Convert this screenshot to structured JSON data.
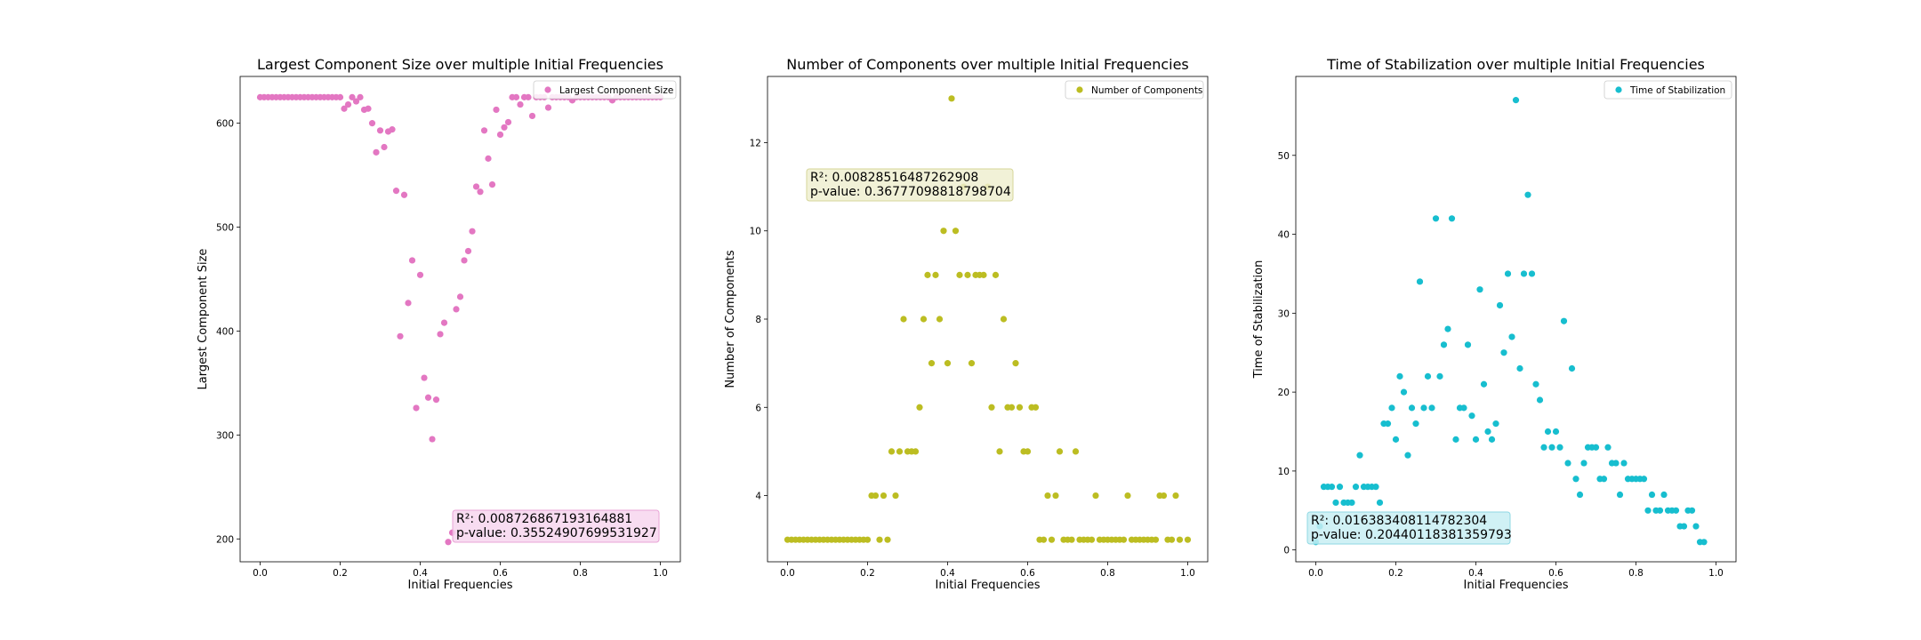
{
  "chart_data": [
    {
      "type": "scatter",
      "title": "Largest Component Size over multiple Initial Frequencies",
      "xlabel": "Initial Frequencies",
      "ylabel": "Largest Component Size",
      "xlim": [
        -0.05,
        1.05
      ],
      "ylim": [
        178,
        645
      ],
      "xticks": [
        0.0,
        0.2,
        0.4,
        0.6,
        0.8,
        1.0
      ],
      "xtick_labels": [
        "0.0",
        "0.2",
        "0.4",
        "0.6",
        "0.8",
        "1.0"
      ],
      "yticks": [
        200,
        300,
        400,
        500,
        600
      ],
      "ytick_labels": [
        "200",
        "300",
        "400",
        "500",
        "600"
      ],
      "legend": {
        "label": "Largest Component Size",
        "position": "top-right"
      },
      "color": "#e377c2",
      "annotation": {
        "line1": "R²: 0.008726867193164881",
        "line2": "p-value: 0.35524907699531927",
        "position": "bottom-right",
        "box_fill": "#f7d6ee",
        "box_stroke": "#e9a3d6"
      },
      "grid": false,
      "points": [
        [
          0.0,
          625
        ],
        [
          0.01,
          625
        ],
        [
          0.02,
          625
        ],
        [
          0.03,
          625
        ],
        [
          0.04,
          625
        ],
        [
          0.05,
          625
        ],
        [
          0.06,
          625
        ],
        [
          0.07,
          625
        ],
        [
          0.08,
          625
        ],
        [
          0.09,
          625
        ],
        [
          0.1,
          625
        ],
        [
          0.11,
          625
        ],
        [
          0.12,
          625
        ],
        [
          0.13,
          625
        ],
        [
          0.14,
          625
        ],
        [
          0.15,
          625
        ],
        [
          0.16,
          625
        ],
        [
          0.17,
          625
        ],
        [
          0.18,
          625
        ],
        [
          0.19,
          625
        ],
        [
          0.2,
          625
        ],
        [
          0.21,
          614
        ],
        [
          0.22,
          618
        ],
        [
          0.23,
          625
        ],
        [
          0.24,
          621
        ],
        [
          0.25,
          625
        ],
        [
          0.26,
          613
        ],
        [
          0.27,
          614
        ],
        [
          0.28,
          600
        ],
        [
          0.29,
          572
        ],
        [
          0.3,
          593
        ],
        [
          0.31,
          577
        ],
        [
          0.32,
          592
        ],
        [
          0.33,
          594
        ],
        [
          0.34,
          535
        ],
        [
          0.35,
          395
        ],
        [
          0.36,
          531
        ],
        [
          0.37,
          427
        ],
        [
          0.38,
          468
        ],
        [
          0.39,
          326
        ],
        [
          0.4,
          454
        ],
        [
          0.41,
          355
        ],
        [
          0.42,
          336
        ],
        [
          0.43,
          296
        ],
        [
          0.44,
          334
        ],
        [
          0.45,
          397
        ],
        [
          0.46,
          408
        ],
        [
          0.47,
          197
        ],
        [
          0.48,
          206
        ],
        [
          0.49,
          421
        ],
        [
          0.5,
          433
        ],
        [
          0.51,
          468
        ],
        [
          0.52,
          477
        ],
        [
          0.53,
          496
        ],
        [
          0.54,
          539
        ],
        [
          0.55,
          534
        ],
        [
          0.56,
          593
        ],
        [
          0.57,
          566
        ],
        [
          0.58,
          541
        ],
        [
          0.59,
          613
        ],
        [
          0.6,
          589
        ],
        [
          0.61,
          596
        ],
        [
          0.62,
          601
        ],
        [
          0.63,
          625
        ],
        [
          0.64,
          625
        ],
        [
          0.65,
          618
        ],
        [
          0.66,
          625
        ],
        [
          0.67,
          625
        ],
        [
          0.68,
          607
        ],
        [
          0.69,
          625
        ],
        [
          0.7,
          625
        ],
        [
          0.71,
          625
        ],
        [
          0.72,
          615
        ],
        [
          0.73,
          625
        ],
        [
          0.74,
          625
        ],
        [
          0.75,
          625
        ],
        [
          0.76,
          625
        ],
        [
          0.77,
          625
        ],
        [
          0.78,
          622
        ],
        [
          0.79,
          625
        ],
        [
          0.8,
          625
        ],
        [
          0.81,
          625
        ],
        [
          0.82,
          625
        ],
        [
          0.83,
          625
        ],
        [
          0.84,
          625
        ],
        [
          0.85,
          625
        ],
        [
          0.86,
          625
        ],
        [
          0.87,
          625
        ],
        [
          0.88,
          622
        ],
        [
          0.89,
          625
        ],
        [
          0.9,
          625
        ],
        [
          0.91,
          625
        ],
        [
          0.92,
          625
        ],
        [
          0.93,
          625
        ],
        [
          0.94,
          625
        ],
        [
          0.95,
          625
        ],
        [
          0.96,
          625
        ],
        [
          0.97,
          625
        ],
        [
          0.98,
          625
        ],
        [
          0.99,
          625
        ],
        [
          1.0,
          625
        ]
      ]
    },
    {
      "type": "scatter",
      "title": "Number of Components over multiple Initial Frequencies",
      "xlabel": "Initial Frequencies",
      "ylabel": "Number of Components",
      "xlim": [
        -0.05,
        1.05
      ],
      "ylim": [
        2.5,
        13.5
      ],
      "xticks": [
        0.0,
        0.2,
        0.4,
        0.6,
        0.8,
        1.0
      ],
      "xtick_labels": [
        "0.0",
        "0.2",
        "0.4",
        "0.6",
        "0.8",
        "1.0"
      ],
      "yticks": [
        4,
        6,
        8,
        10,
        12
      ],
      "ytick_labels": [
        "4",
        "6",
        "8",
        "10",
        "12"
      ],
      "legend": {
        "label": "Number of Components",
        "position": "top-right"
      },
      "color": "#bcbd22",
      "annotation": {
        "line1": "R²: 0.00828516487262908",
        "line2": "p-value: 0.36777098818798704",
        "position": "top-left",
        "box_fill": "#eeeed0",
        "box_stroke": "#d6d69a"
      },
      "grid": false,
      "points": [
        [
          0.0,
          3
        ],
        [
          0.01,
          3
        ],
        [
          0.02,
          3
        ],
        [
          0.03,
          3
        ],
        [
          0.04,
          3
        ],
        [
          0.05,
          3
        ],
        [
          0.06,
          3
        ],
        [
          0.07,
          3
        ],
        [
          0.08,
          3
        ],
        [
          0.09,
          3
        ],
        [
          0.1,
          3
        ],
        [
          0.11,
          3
        ],
        [
          0.12,
          3
        ],
        [
          0.13,
          3
        ],
        [
          0.14,
          3
        ],
        [
          0.15,
          3
        ],
        [
          0.16,
          3
        ],
        [
          0.17,
          3
        ],
        [
          0.18,
          3
        ],
        [
          0.19,
          3
        ],
        [
          0.2,
          3
        ],
        [
          0.21,
          4
        ],
        [
          0.22,
          4
        ],
        [
          0.23,
          3
        ],
        [
          0.24,
          4
        ],
        [
          0.25,
          3
        ],
        [
          0.26,
          5
        ],
        [
          0.27,
          4
        ],
        [
          0.28,
          5
        ],
        [
          0.29,
          8
        ],
        [
          0.3,
          5
        ],
        [
          0.31,
          5
        ],
        [
          0.32,
          5
        ],
        [
          0.33,
          6
        ],
        [
          0.34,
          8
        ],
        [
          0.35,
          9
        ],
        [
          0.36,
          7
        ],
        [
          0.37,
          9
        ],
        [
          0.38,
          8
        ],
        [
          0.39,
          10
        ],
        [
          0.4,
          7
        ],
        [
          0.41,
          13
        ],
        [
          0.42,
          10
        ],
        [
          0.43,
          9
        ],
        [
          0.44,
          11
        ],
        [
          0.45,
          9
        ],
        [
          0.46,
          7
        ],
        [
          0.47,
          9
        ],
        [
          0.48,
          9
        ],
        [
          0.49,
          9
        ],
        [
          0.5,
          11
        ],
        [
          0.51,
          6
        ],
        [
          0.52,
          9
        ],
        [
          0.53,
          5
        ],
        [
          0.54,
          8
        ],
        [
          0.55,
          6
        ],
        [
          0.56,
          6
        ],
        [
          0.57,
          7
        ],
        [
          0.58,
          6
        ],
        [
          0.59,
          5
        ],
        [
          0.6,
          5
        ],
        [
          0.61,
          6
        ],
        [
          0.62,
          6
        ],
        [
          0.63,
          3
        ],
        [
          0.64,
          3
        ],
        [
          0.65,
          4
        ],
        [
          0.66,
          3
        ],
        [
          0.67,
          4
        ],
        [
          0.68,
          5
        ],
        [
          0.69,
          3
        ],
        [
          0.7,
          3
        ],
        [
          0.71,
          3
        ],
        [
          0.72,
          5
        ],
        [
          0.73,
          3
        ],
        [
          0.74,
          3
        ],
        [
          0.75,
          3
        ],
        [
          0.76,
          3
        ],
        [
          0.77,
          4
        ],
        [
          0.78,
          3
        ],
        [
          0.79,
          3
        ],
        [
          0.8,
          3
        ],
        [
          0.81,
          3
        ],
        [
          0.82,
          3
        ],
        [
          0.83,
          3
        ],
        [
          0.84,
          3
        ],
        [
          0.85,
          4
        ],
        [
          0.86,
          3
        ],
        [
          0.87,
          3
        ],
        [
          0.88,
          3
        ],
        [
          0.89,
          3
        ],
        [
          0.9,
          3
        ],
        [
          0.91,
          3
        ],
        [
          0.92,
          3
        ],
        [
          0.93,
          4
        ],
        [
          0.94,
          4
        ],
        [
          0.95,
          3
        ],
        [
          0.96,
          3
        ],
        [
          0.97,
          4
        ],
        [
          0.98,
          3
        ],
        [
          1.0,
          3
        ]
      ]
    },
    {
      "type": "scatter",
      "title": "Time of Stabilization over multiple Initial Frequencies",
      "xlabel": "Initial Frequencies",
      "ylabel": "Time of Stabilization",
      "xlim": [
        -0.05,
        1.05
      ],
      "ylim": [
        -1.5,
        60
      ],
      "xticks": [
        0.0,
        0.2,
        0.4,
        0.6,
        0.8,
        1.0
      ],
      "xtick_labels": [
        "0.0",
        "0.2",
        "0.4",
        "0.6",
        "0.8",
        "1.0"
      ],
      "yticks": [
        0,
        10,
        20,
        30,
        40,
        50
      ],
      "ytick_labels": [
        "0",
        "10",
        "20",
        "30",
        "40",
        "50"
      ],
      "legend": {
        "label": "Time of Stabilization",
        "position": "top-right"
      },
      "color": "#17becf",
      "annotation": {
        "line1": "R²: 0.016383408114782304",
        "line2": "p-value: 0.20440118381359793",
        "position": "bottom-left",
        "box_fill": "#c8eef3",
        "box_stroke": "#8fd8e3"
      },
      "grid": false,
      "points": [
        [
          0.0,
          1
        ],
        [
          0.01,
          3
        ],
        [
          0.02,
          8
        ],
        [
          0.03,
          8
        ],
        [
          0.04,
          8
        ],
        [
          0.05,
          6
        ],
        [
          0.06,
          8
        ],
        [
          0.07,
          6
        ],
        [
          0.08,
          6
        ],
        [
          0.09,
          6
        ],
        [
          0.1,
          8
        ],
        [
          0.11,
          12
        ],
        [
          0.12,
          8
        ],
        [
          0.13,
          8
        ],
        [
          0.14,
          8
        ],
        [
          0.15,
          8
        ],
        [
          0.16,
          6
        ],
        [
          0.17,
          16
        ],
        [
          0.18,
          16
        ],
        [
          0.19,
          18
        ],
        [
          0.2,
          14
        ],
        [
          0.21,
          22
        ],
        [
          0.22,
          20
        ],
        [
          0.23,
          12
        ],
        [
          0.24,
          18
        ],
        [
          0.25,
          16
        ],
        [
          0.26,
          34
        ],
        [
          0.27,
          18
        ],
        [
          0.28,
          22
        ],
        [
          0.29,
          18
        ],
        [
          0.3,
          42
        ],
        [
          0.31,
          22
        ],
        [
          0.32,
          26
        ],
        [
          0.33,
          28
        ],
        [
          0.34,
          42
        ],
        [
          0.35,
          14
        ],
        [
          0.36,
          18
        ],
        [
          0.37,
          18
        ],
        [
          0.38,
          26
        ],
        [
          0.39,
          17
        ],
        [
          0.4,
          14
        ],
        [
          0.41,
          33
        ],
        [
          0.42,
          21
        ],
        [
          0.43,
          15
        ],
        [
          0.44,
          14
        ],
        [
          0.45,
          16
        ],
        [
          0.46,
          31
        ],
        [
          0.47,
          25
        ],
        [
          0.48,
          35
        ],
        [
          0.49,
          27
        ],
        [
          0.5,
          57
        ],
        [
          0.51,
          23
        ],
        [
          0.52,
          35
        ],
        [
          0.53,
          45
        ],
        [
          0.54,
          35
        ],
        [
          0.55,
          21
        ],
        [
          0.56,
          19
        ],
        [
          0.57,
          13
        ],
        [
          0.58,
          15
        ],
        [
          0.59,
          13
        ],
        [
          0.6,
          15
        ],
        [
          0.61,
          13
        ],
        [
          0.62,
          29
        ],
        [
          0.63,
          11
        ],
        [
          0.64,
          23
        ],
        [
          0.65,
          9
        ],
        [
          0.66,
          7
        ],
        [
          0.67,
          11
        ],
        [
          0.68,
          13
        ],
        [
          0.69,
          13
        ],
        [
          0.7,
          13
        ],
        [
          0.71,
          9
        ],
        [
          0.72,
          9
        ],
        [
          0.73,
          13
        ],
        [
          0.74,
          11
        ],
        [
          0.75,
          11
        ],
        [
          0.76,
          7
        ],
        [
          0.77,
          11
        ],
        [
          0.78,
          9
        ],
        [
          0.79,
          9
        ],
        [
          0.8,
          9
        ],
        [
          0.81,
          9
        ],
        [
          0.82,
          9
        ],
        [
          0.83,
          5
        ],
        [
          0.84,
          7
        ],
        [
          0.85,
          5
        ],
        [
          0.86,
          5
        ],
        [
          0.87,
          7
        ],
        [
          0.88,
          5
        ],
        [
          0.89,
          5
        ],
        [
          0.9,
          5
        ],
        [
          0.91,
          3
        ],
        [
          0.92,
          3
        ],
        [
          0.93,
          5
        ],
        [
          0.94,
          5
        ],
        [
          0.95,
          3
        ],
        [
          0.96,
          1
        ],
        [
          0.97,
          1
        ]
      ]
    }
  ]
}
